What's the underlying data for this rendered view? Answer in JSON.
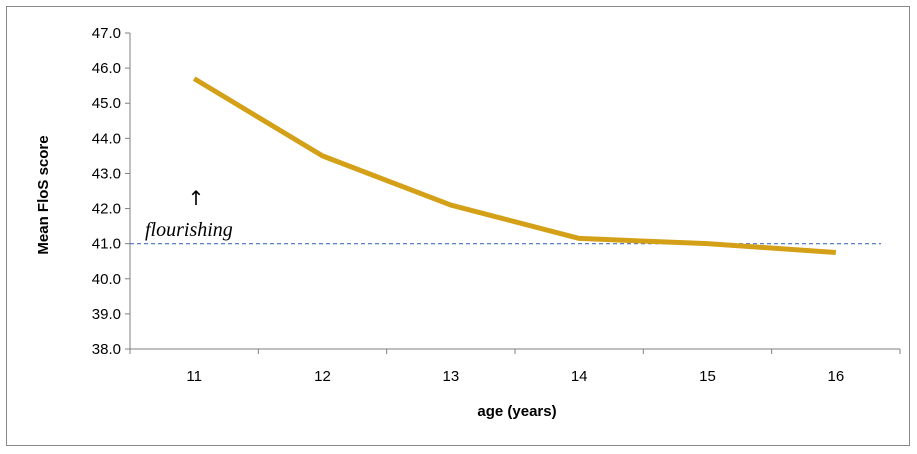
{
  "chart_data": {
    "type": "line",
    "categories": [
      "11",
      "12",
      "13",
      "14",
      "15",
      "16"
    ],
    "series": [
      {
        "values": [
          45.7,
          43.5,
          42.1,
          41.15,
          41.0,
          40.75
        ],
        "color": "#D4A017"
      }
    ],
    "xlabel": "age (years)",
    "ylabel": "Mean FloS score",
    "ylim": [
      38.0,
      47.0
    ],
    "yticks": [
      "38.0",
      "39.0",
      "40.0",
      "41.0",
      "42.0",
      "43.0",
      "44.0",
      "45.0",
      "46.0",
      "47.0"
    ],
    "grid": false,
    "legend": "none",
    "threshold": {
      "value": 41.0,
      "label": "flourishing",
      "arrow": "↑",
      "color": "#4472C4",
      "style": "dashed"
    }
  }
}
